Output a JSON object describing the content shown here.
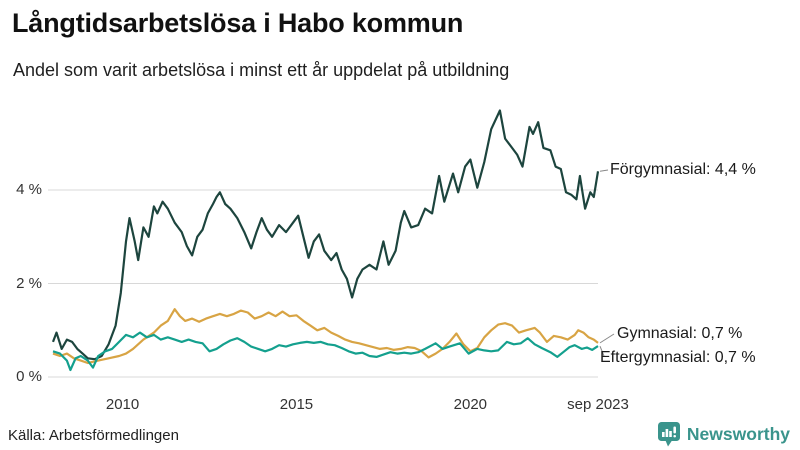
{
  "header": {
    "title": "Långtidsarbetslösa i Habo kommun",
    "subtitle": "Andel som varit arbetslösa i minst ett år uppdelat på utbildning"
  },
  "footer": {
    "source": "Källa: Arbetsförmedlingen",
    "brand": "Newsworthy",
    "brand_color": "#3a948c"
  },
  "chart_data": {
    "type": "line",
    "title": "Långtidsarbetslösa i Habo kommun",
    "subtitle": "Andel som varit arbetslösa i minst ett år uppdelat på utbildning",
    "grid": "horizontal-only",
    "grid_color": "#d8d8d8",
    "legend_position": "end-of-line-labels",
    "x_axis": {
      "range": [
        2008,
        2023.67
      ],
      "ticks": [
        {
          "label": "2010",
          "year": 2010
        },
        {
          "label": "2015",
          "year": 2015
        },
        {
          "label": "2020",
          "year": 2020
        },
        {
          "label": "sep 2023",
          "year": 2023.67
        }
      ]
    },
    "y_axis": {
      "unit": "%",
      "range": [
        0,
        6.03
      ],
      "ticks": [
        {
          "label": "0 %",
          "value": 0
        },
        {
          "label": "2 %",
          "value": 2
        },
        {
          "label": "4 %",
          "value": 4
        }
      ]
    },
    "series": [
      {
        "name": "Förgymnasial",
        "end_label": "Förgymnasial: 4,4 %",
        "end_value_text": "4,4 %",
        "color": "#1d453e",
        "points": [
          [
            2008.0,
            0.75
          ],
          [
            2008.1,
            0.95
          ],
          [
            2008.25,
            0.6
          ],
          [
            2008.4,
            0.8
          ],
          [
            2008.55,
            0.75
          ],
          [
            2008.7,
            0.6
          ],
          [
            2008.85,
            0.5
          ],
          [
            2009.0,
            0.4
          ],
          [
            2009.2,
            0.38
          ],
          [
            2009.4,
            0.45
          ],
          [
            2009.6,
            0.7
          ],
          [
            2009.8,
            1.1
          ],
          [
            2009.95,
            1.8
          ],
          [
            2010.1,
            2.9
          ],
          [
            2010.2,
            3.4
          ],
          [
            2010.35,
            2.9
          ],
          [
            2010.45,
            2.5
          ],
          [
            2010.6,
            3.2
          ],
          [
            2010.75,
            3.0
          ],
          [
            2010.9,
            3.65
          ],
          [
            2011.0,
            3.5
          ],
          [
            2011.15,
            3.75
          ],
          [
            2011.3,
            3.6
          ],
          [
            2011.5,
            3.3
          ],
          [
            2011.7,
            3.1
          ],
          [
            2011.85,
            2.8
          ],
          [
            2012.0,
            2.6
          ],
          [
            2012.15,
            3.0
          ],
          [
            2012.3,
            3.15
          ],
          [
            2012.45,
            3.5
          ],
          [
            2012.6,
            3.7
          ],
          [
            2012.7,
            3.85
          ],
          [
            2012.8,
            3.95
          ],
          [
            2012.95,
            3.7
          ],
          [
            2013.1,
            3.6
          ],
          [
            2013.3,
            3.4
          ],
          [
            2013.5,
            3.1
          ],
          [
            2013.7,
            2.75
          ],
          [
            2013.85,
            3.1
          ],
          [
            2014.0,
            3.4
          ],
          [
            2014.15,
            3.15
          ],
          [
            2014.3,
            3.0
          ],
          [
            2014.5,
            3.25
          ],
          [
            2014.7,
            3.1
          ],
          [
            2014.9,
            3.3
          ],
          [
            2015.05,
            3.45
          ],
          [
            2015.2,
            3.0
          ],
          [
            2015.35,
            2.55
          ],
          [
            2015.5,
            2.9
          ],
          [
            2015.65,
            3.05
          ],
          [
            2015.8,
            2.7
          ],
          [
            2016.0,
            2.5
          ],
          [
            2016.15,
            2.65
          ],
          [
            2016.3,
            2.3
          ],
          [
            2016.45,
            2.1
          ],
          [
            2016.6,
            1.7
          ],
          [
            2016.75,
            2.1
          ],
          [
            2016.9,
            2.3
          ],
          [
            2017.1,
            2.4
          ],
          [
            2017.3,
            2.3
          ],
          [
            2017.5,
            2.9
          ],
          [
            2017.65,
            2.4
          ],
          [
            2017.85,
            2.7
          ],
          [
            2018.0,
            3.3
          ],
          [
            2018.1,
            3.55
          ],
          [
            2018.3,
            3.2
          ],
          [
            2018.5,
            3.25
          ],
          [
            2018.7,
            3.6
          ],
          [
            2018.9,
            3.5
          ],
          [
            2019.1,
            4.3
          ],
          [
            2019.25,
            3.75
          ],
          [
            2019.5,
            4.35
          ],
          [
            2019.65,
            3.95
          ],
          [
            2019.85,
            4.5
          ],
          [
            2020.0,
            4.65
          ],
          [
            2020.2,
            4.05
          ],
          [
            2020.4,
            4.6
          ],
          [
            2020.6,
            5.3
          ],
          [
            2020.85,
            5.7
          ],
          [
            2021.0,
            5.1
          ],
          [
            2021.2,
            4.9
          ],
          [
            2021.35,
            4.75
          ],
          [
            2021.5,
            4.5
          ],
          [
            2021.7,
            5.35
          ],
          [
            2021.8,
            5.2
          ],
          [
            2021.95,
            5.45
          ],
          [
            2022.1,
            4.9
          ],
          [
            2022.3,
            4.85
          ],
          [
            2022.45,
            4.5
          ],
          [
            2022.6,
            4.45
          ],
          [
            2022.75,
            3.95
          ],
          [
            2022.9,
            3.9
          ],
          [
            2023.05,
            3.8
          ],
          [
            2023.15,
            4.3
          ],
          [
            2023.3,
            3.6
          ],
          [
            2023.45,
            3.95
          ],
          [
            2023.55,
            3.85
          ],
          [
            2023.67,
            4.4
          ]
        ]
      },
      {
        "name": "Gymnasial",
        "end_label": "Gymnasial: 0,7 %",
        "end_value_text": "0,7 %",
        "color": "#d8a444",
        "points": [
          [
            2008.0,
            0.5
          ],
          [
            2008.2,
            0.45
          ],
          [
            2008.4,
            0.5
          ],
          [
            2008.6,
            0.4
          ],
          [
            2008.8,
            0.35
          ],
          [
            2009.0,
            0.3
          ],
          [
            2009.3,
            0.35
          ],
          [
            2009.6,
            0.4
          ],
          [
            2009.9,
            0.45
          ],
          [
            2010.1,
            0.5
          ],
          [
            2010.3,
            0.6
          ],
          [
            2010.6,
            0.8
          ],
          [
            2010.9,
            0.95
          ],
          [
            2011.1,
            1.1
          ],
          [
            2011.3,
            1.2
          ],
          [
            2011.5,
            1.45
          ],
          [
            2011.65,
            1.3
          ],
          [
            2011.8,
            1.2
          ],
          [
            2012.0,
            1.25
          ],
          [
            2012.2,
            1.18
          ],
          [
            2012.4,
            1.25
          ],
          [
            2012.6,
            1.3
          ],
          [
            2012.8,
            1.35
          ],
          [
            2013.0,
            1.3
          ],
          [
            2013.2,
            1.35
          ],
          [
            2013.4,
            1.42
          ],
          [
            2013.6,
            1.38
          ],
          [
            2013.8,
            1.25
          ],
          [
            2014.0,
            1.3
          ],
          [
            2014.2,
            1.38
          ],
          [
            2014.4,
            1.3
          ],
          [
            2014.6,
            1.4
          ],
          [
            2014.8,
            1.3
          ],
          [
            2015.0,
            1.32
          ],
          [
            2015.2,
            1.2
          ],
          [
            2015.4,
            1.1
          ],
          [
            2015.6,
            1.0
          ],
          [
            2015.8,
            1.05
          ],
          [
            2016.0,
            0.95
          ],
          [
            2016.2,
            0.88
          ],
          [
            2016.4,
            0.8
          ],
          [
            2016.6,
            0.75
          ],
          [
            2016.8,
            0.72
          ],
          [
            2017.0,
            0.68
          ],
          [
            2017.2,
            0.64
          ],
          [
            2017.4,
            0.6
          ],
          [
            2017.6,
            0.62
          ],
          [
            2017.8,
            0.58
          ],
          [
            2018.0,
            0.6
          ],
          [
            2018.2,
            0.64
          ],
          [
            2018.4,
            0.62
          ],
          [
            2018.6,
            0.55
          ],
          [
            2018.8,
            0.42
          ],
          [
            2019.0,
            0.5
          ],
          [
            2019.2,
            0.6
          ],
          [
            2019.4,
            0.75
          ],
          [
            2019.6,
            0.93
          ],
          [
            2019.8,
            0.7
          ],
          [
            2020.0,
            0.55
          ],
          [
            2020.2,
            0.62
          ],
          [
            2020.4,
            0.85
          ],
          [
            2020.6,
            1.0
          ],
          [
            2020.8,
            1.12
          ],
          [
            2021.0,
            1.15
          ],
          [
            2021.2,
            1.1
          ],
          [
            2021.4,
            0.95
          ],
          [
            2021.6,
            1.0
          ],
          [
            2021.85,
            1.05
          ],
          [
            2022.0,
            0.95
          ],
          [
            2022.2,
            0.75
          ],
          [
            2022.4,
            0.88
          ],
          [
            2022.6,
            0.85
          ],
          [
            2022.8,
            0.8
          ],
          [
            2023.0,
            0.9
          ],
          [
            2023.1,
            1.0
          ],
          [
            2023.25,
            0.95
          ],
          [
            2023.4,
            0.85
          ],
          [
            2023.55,
            0.8
          ],
          [
            2023.67,
            0.73
          ]
        ]
      },
      {
        "name": "Eftergymnasial",
        "end_label": "Eftergymnasial: 0,7 %",
        "end_value_text": "0,7 %",
        "color": "#14a08e",
        "points": [
          [
            2008.0,
            0.55
          ],
          [
            2008.2,
            0.5
          ],
          [
            2008.4,
            0.35
          ],
          [
            2008.5,
            0.15
          ],
          [
            2008.65,
            0.4
          ],
          [
            2008.8,
            0.45
          ],
          [
            2009.0,
            0.35
          ],
          [
            2009.15,
            0.2
          ],
          [
            2009.3,
            0.45
          ],
          [
            2009.5,
            0.55
          ],
          [
            2009.7,
            0.6
          ],
          [
            2009.9,
            0.75
          ],
          [
            2010.1,
            0.9
          ],
          [
            2010.3,
            0.85
          ],
          [
            2010.5,
            0.95
          ],
          [
            2010.7,
            0.85
          ],
          [
            2010.9,
            0.9
          ],
          [
            2011.1,
            0.8
          ],
          [
            2011.3,
            0.85
          ],
          [
            2011.5,
            0.8
          ],
          [
            2011.7,
            0.75
          ],
          [
            2011.9,
            0.8
          ],
          [
            2012.1,
            0.75
          ],
          [
            2012.3,
            0.72
          ],
          [
            2012.5,
            0.55
          ],
          [
            2012.7,
            0.6
          ],
          [
            2012.9,
            0.7
          ],
          [
            2013.1,
            0.78
          ],
          [
            2013.3,
            0.83
          ],
          [
            2013.5,
            0.75
          ],
          [
            2013.7,
            0.65
          ],
          [
            2013.9,
            0.6
          ],
          [
            2014.1,
            0.55
          ],
          [
            2014.3,
            0.6
          ],
          [
            2014.5,
            0.68
          ],
          [
            2014.7,
            0.65
          ],
          [
            2014.9,
            0.7
          ],
          [
            2015.1,
            0.73
          ],
          [
            2015.3,
            0.75
          ],
          [
            2015.5,
            0.73
          ],
          [
            2015.7,
            0.75
          ],
          [
            2015.9,
            0.7
          ],
          [
            2016.1,
            0.68
          ],
          [
            2016.3,
            0.62
          ],
          [
            2016.5,
            0.55
          ],
          [
            2016.7,
            0.5
          ],
          [
            2016.9,
            0.52
          ],
          [
            2017.1,
            0.45
          ],
          [
            2017.3,
            0.43
          ],
          [
            2017.5,
            0.48
          ],
          [
            2017.7,
            0.53
          ],
          [
            2017.9,
            0.5
          ],
          [
            2018.1,
            0.52
          ],
          [
            2018.3,
            0.5
          ],
          [
            2018.5,
            0.53
          ],
          [
            2018.7,
            0.6
          ],
          [
            2018.9,
            0.68
          ],
          [
            2019.0,
            0.72
          ],
          [
            2019.2,
            0.6
          ],
          [
            2019.4,
            0.65
          ],
          [
            2019.7,
            0.72
          ],
          [
            2019.95,
            0.5
          ],
          [
            2020.2,
            0.6
          ],
          [
            2020.4,
            0.57
          ],
          [
            2020.6,
            0.55
          ],
          [
            2020.8,
            0.57
          ],
          [
            2021.05,
            0.75
          ],
          [
            2021.25,
            0.7
          ],
          [
            2021.45,
            0.72
          ],
          [
            2021.65,
            0.83
          ],
          [
            2021.85,
            0.7
          ],
          [
            2022.05,
            0.62
          ],
          [
            2022.3,
            0.53
          ],
          [
            2022.5,
            0.43
          ],
          [
            2022.7,
            0.55
          ],
          [
            2022.85,
            0.64
          ],
          [
            2023.0,
            0.68
          ],
          [
            2023.2,
            0.6
          ],
          [
            2023.35,
            0.63
          ],
          [
            2023.5,
            0.58
          ],
          [
            2023.67,
            0.66
          ]
        ]
      }
    ]
  }
}
